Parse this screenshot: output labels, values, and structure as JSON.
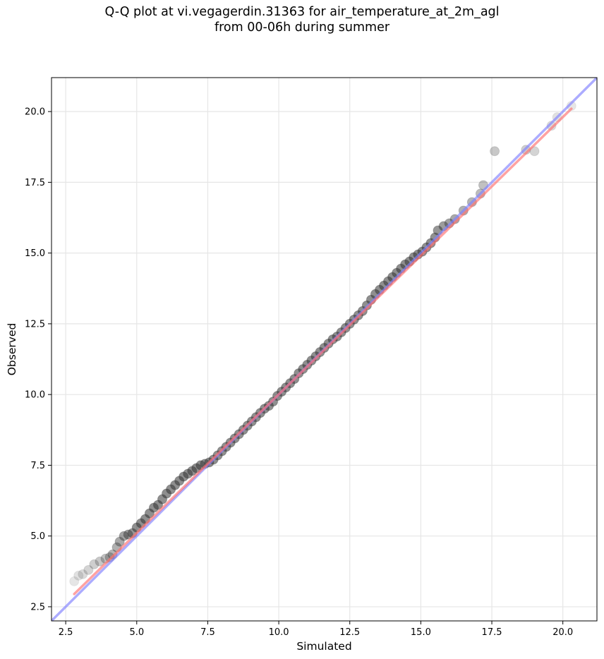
{
  "chart_data": {
    "type": "scatter",
    "title": "Q-Q plot at vi.vegagerdin.31363 for air_temperature_at_2m_agl",
    "subtitle": "from 00-06h during summer",
    "xlabel": "Simulated",
    "ylabel": "Observed",
    "xlim": [
      2.0,
      21.2
    ],
    "ylim": [
      2.0,
      21.2
    ],
    "x_ticks": [
      2.5,
      5.0,
      7.5,
      10.0,
      12.5,
      15.0,
      17.5,
      20.0
    ],
    "x_tick_labels": [
      "2.5",
      "5.0",
      "7.5",
      "10.0",
      "12.5",
      "15.0",
      "17.5",
      "20.0"
    ],
    "y_ticks": [
      2.5,
      5.0,
      7.5,
      10.0,
      12.5,
      15.0,
      17.5,
      20.0
    ],
    "y_tick_labels": [
      "2.5",
      "5.0",
      "7.5",
      "10.0",
      "12.5",
      "15.0",
      "17.5",
      "20.0"
    ],
    "grid": true,
    "colors": {
      "points": "#333333",
      "identity_line": "#8080ff",
      "fit_line": "#ff7070",
      "grid": "#e6e6e6"
    },
    "lines": [
      {
        "kind": "identity",
        "x": [
          2.0,
          21.2
        ],
        "y": [
          2.0,
          21.2
        ]
      },
      {
        "kind": "fit",
        "x": [
          2.8,
          20.3
        ],
        "y": [
          2.95,
          20.1
        ]
      }
    ],
    "points": {
      "x": [
        2.8,
        2.95,
        3.1,
        3.3,
        3.5,
        3.7,
        3.9,
        4.05,
        4.15,
        4.3,
        4.4,
        4.55,
        4.7,
        4.85,
        5.0,
        5.15,
        5.3,
        5.45,
        5.6,
        5.75,
        5.9,
        6.05,
        6.2,
        6.35,
        6.5,
        6.65,
        6.8,
        6.95,
        7.1,
        7.25,
        7.4,
        7.55,
        7.7,
        7.85,
        8.0,
        8.15,
        8.3,
        8.45,
        8.6,
        8.75,
        8.9,
        9.05,
        9.2,
        9.35,
        9.5,
        9.65,
        9.8,
        9.95,
        10.1,
        10.25,
        10.4,
        10.55,
        10.7,
        10.85,
        11.0,
        11.15,
        11.3,
        11.45,
        11.6,
        11.75,
        11.9,
        12.05,
        12.2,
        12.35,
        12.5,
        12.65,
        12.8,
        12.95,
        13.1,
        13.25,
        13.4,
        13.55,
        13.7,
        13.85,
        14.0,
        14.15,
        14.3,
        14.45,
        14.6,
        14.75,
        14.9,
        15.05,
        15.2,
        15.35,
        15.5,
        15.6,
        15.8,
        16.0,
        16.2,
        16.5,
        16.8,
        17.1,
        17.2,
        17.6,
        18.7,
        19.0,
        19.6,
        19.8,
        20.3
      ],
      "y": [
        3.4,
        3.6,
        3.65,
        3.8,
        4.0,
        4.1,
        4.2,
        4.25,
        4.35,
        4.6,
        4.8,
        5.0,
        5.05,
        5.1,
        5.3,
        5.45,
        5.6,
        5.8,
        6.0,
        6.1,
        6.3,
        6.5,
        6.65,
        6.8,
        6.95,
        7.1,
        7.2,
        7.3,
        7.4,
        7.5,
        7.55,
        7.6,
        7.7,
        7.85,
        8.0,
        8.15,
        8.3,
        8.45,
        8.6,
        8.75,
        8.9,
        9.05,
        9.2,
        9.35,
        9.5,
        9.6,
        9.75,
        9.95,
        10.1,
        10.25,
        10.4,
        10.55,
        10.75,
        10.9,
        11.05,
        11.2,
        11.35,
        11.5,
        11.65,
        11.8,
        11.95,
        12.05,
        12.2,
        12.35,
        12.5,
        12.65,
        12.8,
        12.95,
        13.15,
        13.35,
        13.55,
        13.7,
        13.85,
        14.0,
        14.15,
        14.3,
        14.45,
        14.6,
        14.7,
        14.85,
        14.95,
        15.05,
        15.2,
        15.35,
        15.55,
        15.8,
        15.95,
        16.05,
        16.2,
        16.5,
        16.8,
        17.1,
        17.4,
        18.6,
        18.65,
        18.6,
        19.5,
        19.8,
        20.2
      ]
    }
  }
}
